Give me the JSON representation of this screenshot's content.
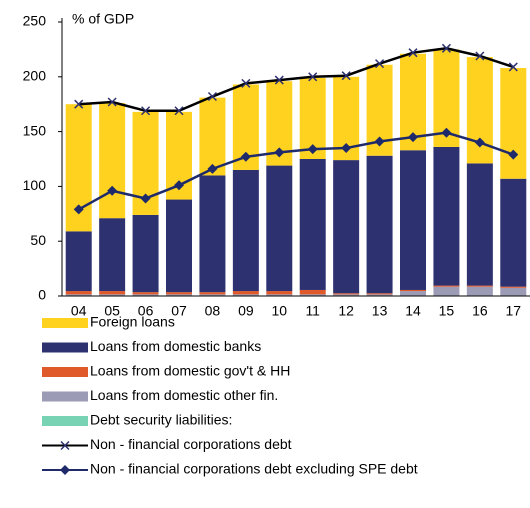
{
  "chart_data": {
    "type": "bar",
    "stacked": true,
    "ylabel": "% of GDP",
    "categories": [
      "04",
      "05",
      "06",
      "07",
      "08",
      "09",
      "10",
      "11",
      "12",
      "13",
      "14",
      "15",
      "16",
      "17"
    ],
    "ylim": [
      0,
      250
    ],
    "yticks": [
      0,
      50,
      100,
      150,
      200,
      250
    ],
    "series": [
      {
        "name": "Foreign loans",
        "color": "#FFD21F",
        "values": [
          116,
          105,
          94,
          80,
          71,
          78,
          77,
          74,
          76,
          83,
          88,
          89,
          97,
          101
        ]
      },
      {
        "name": "Loans from domestic banks",
        "color": "#2E3170",
        "values": [
          54.5,
          66.5,
          70.5,
          84.5,
          106.5,
          110.5,
          114.5,
          119.5,
          121.5,
          125.5,
          127.5,
          126.5,
          111.5,
          98.5
        ]
      },
      {
        "name": "Loans from domestic gov't & HH",
        "color": "#E0592A",
        "values": [
          3,
          3,
          2,
          2,
          2,
          3,
          3,
          4,
          1,
          1,
          1,
          1,
          1,
          1
        ]
      },
      {
        "name": "Loans from domestic other fin.",
        "color": "#9B9BB5",
        "values": [
          1,
          1,
          1,
          1,
          1,
          1,
          1,
          1,
          1,
          1,
          4,
          8,
          8,
          7
        ]
      },
      {
        "name": "Debt security liabilities:",
        "color": "#77D3B4",
        "values": [
          0.5,
          0.5,
          0.5,
          0.5,
          0.5,
          0.5,
          0.5,
          0.5,
          0.5,
          0.5,
          0.5,
          0.5,
          0.5,
          0.5
        ]
      },
      {
        "name": "Non - financial corporations debt",
        "type": "line",
        "marker": "x",
        "color": "#000000",
        "values": [
          175,
          177,
          169,
          169,
          182,
          194,
          197,
          200,
          201,
          212,
          222,
          226,
          219,
          209
        ]
      },
      {
        "name": "Non - financial corporations debt excluding SPE debt",
        "type": "line",
        "marker": "diamond",
        "color": "#1F2A6B",
        "values": [
          79,
          96,
          89,
          101,
          116,
          127,
          131,
          134,
          135,
          141,
          145,
          149,
          140,
          129
        ]
      }
    ]
  }
}
